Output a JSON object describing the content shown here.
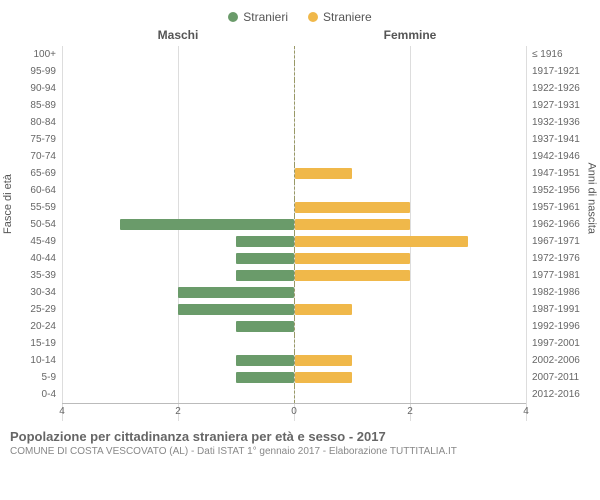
{
  "chart": {
    "type": "population_pyramid",
    "legend": {
      "male": {
        "label": "Stranieri",
        "color": "#6a9b6a"
      },
      "female": {
        "label": "Straniere",
        "color": "#f0b84a"
      }
    },
    "column_headers": {
      "left": "Maschi",
      "right": "Femmine"
    },
    "axis_labels": {
      "left": "Fasce di età",
      "right": "Anni di nascita"
    },
    "x_max": 4,
    "x_ticks_left": [
      4,
      2,
      0
    ],
    "x_ticks_right": [
      0,
      2,
      4
    ],
    "grid_color": "#dddddd",
    "background_color": "#ffffff",
    "rows": [
      {
        "age": "100+",
        "birth": "≤ 1916",
        "m": 0,
        "f": 0
      },
      {
        "age": "95-99",
        "birth": "1917-1921",
        "m": 0,
        "f": 0
      },
      {
        "age": "90-94",
        "birth": "1922-1926",
        "m": 0,
        "f": 0
      },
      {
        "age": "85-89",
        "birth": "1927-1931",
        "m": 0,
        "f": 0
      },
      {
        "age": "80-84",
        "birth": "1932-1936",
        "m": 0,
        "f": 0
      },
      {
        "age": "75-79",
        "birth": "1937-1941",
        "m": 0,
        "f": 0
      },
      {
        "age": "70-74",
        "birth": "1942-1946",
        "m": 0,
        "f": 0
      },
      {
        "age": "65-69",
        "birth": "1947-1951",
        "m": 0,
        "f": 1
      },
      {
        "age": "60-64",
        "birth": "1952-1956",
        "m": 0,
        "f": 0
      },
      {
        "age": "55-59",
        "birth": "1957-1961",
        "m": 0,
        "f": 2
      },
      {
        "age": "50-54",
        "birth": "1962-1966",
        "m": 3,
        "f": 2
      },
      {
        "age": "45-49",
        "birth": "1967-1971",
        "m": 1,
        "f": 3
      },
      {
        "age": "40-44",
        "birth": "1972-1976",
        "m": 1,
        "f": 2
      },
      {
        "age": "35-39",
        "birth": "1977-1981",
        "m": 1,
        "f": 2
      },
      {
        "age": "30-34",
        "birth": "1982-1986",
        "m": 2,
        "f": 0
      },
      {
        "age": "25-29",
        "birth": "1987-1991",
        "m": 2,
        "f": 1
      },
      {
        "age": "20-24",
        "birth": "1992-1996",
        "m": 1,
        "f": 0
      },
      {
        "age": "15-19",
        "birth": "1997-2001",
        "m": 0,
        "f": 0
      },
      {
        "age": "10-14",
        "birth": "2002-2006",
        "m": 1,
        "f": 1
      },
      {
        "age": "5-9",
        "birth": "2007-2011",
        "m": 1,
        "f": 1
      },
      {
        "age": "0-4",
        "birth": "2012-2016",
        "m": 0,
        "f": 0
      }
    ]
  },
  "footer": {
    "title": "Popolazione per cittadinanza straniera per età e sesso - 2017",
    "subtitle": "COMUNE DI COSTA VESCOVATO (AL) - Dati ISTAT 1° gennaio 2017 - Elaborazione TUTTITALIA.IT"
  }
}
